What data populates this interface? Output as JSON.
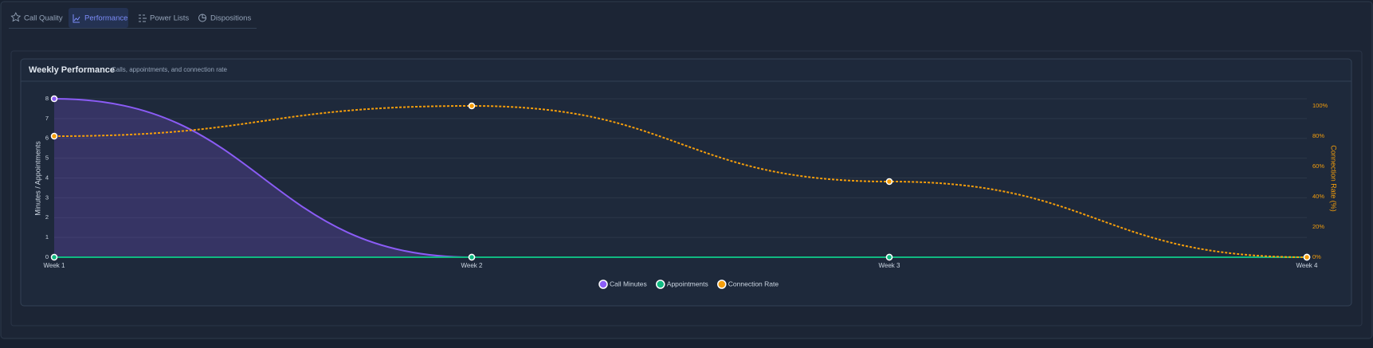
{
  "tabs": [
    "Call Quality",
    "Performance",
    "Power Lists",
    "Dispositions"
  ],
  "chart_data": {
    "type": "line",
    "title": "Weekly Performance",
    "subtitle": "Calls, appointments, and connection rate",
    "categories": [
      "Week 1",
      "Week 2",
      "Week 3",
      "Week 4"
    ],
    "y_label": "Minutes / Appointments",
    "y2_label": "Connection Rate (%)",
    "ylim": [
      0,
      8
    ],
    "yticks": [
      0,
      1,
      2,
      3,
      4,
      5,
      6,
      7,
      8
    ],
    "y2lim": [
      0,
      100
    ],
    "y2ticks": [
      {
        "value": 0,
        "label": "0%"
      },
      {
        "value": 20,
        "label": "20%"
      },
      {
        "value": 40,
        "label": "40%"
      },
      {
        "value": 60,
        "label": "60%"
      },
      {
        "value": 80,
        "label": "80%"
      },
      {
        "value": 100,
        "label": "100%"
      }
    ],
    "grid": true,
    "series": [
      {
        "name": "Call Minutes",
        "color": "#8b5cf6",
        "values": [
          8,
          0,
          0,
          0
        ],
        "area": true
      },
      {
        "name": "Appointments",
        "color": "#10b981",
        "values": [
          0,
          0,
          0,
          0
        ]
      },
      {
        "name": "Connection Rate",
        "color": "#f59e0b",
        "values": [
          80,
          100,
          50,
          0
        ],
        "axis": "y2",
        "dashed": true
      }
    ]
  }
}
